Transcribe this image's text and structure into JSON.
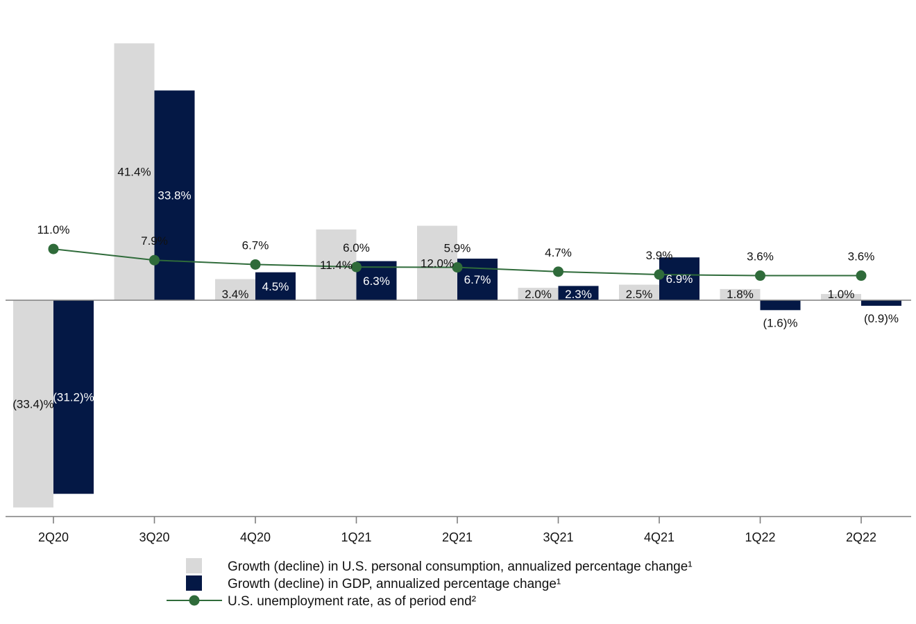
{
  "chart_data": {
    "type": "bar",
    "categories": [
      "2Q20",
      "3Q20",
      "4Q20",
      "1Q21",
      "2Q21",
      "3Q21",
      "4Q21",
      "1Q22",
      "2Q22"
    ],
    "series": [
      {
        "name": "Growth (decline) in U.S. personal consumption, annualized percentage change¹",
        "kind": "bar",
        "color": "#d9d9d9",
        "values": [
          -33.4,
          41.4,
          3.4,
          11.4,
          12.0,
          2.0,
          2.5,
          1.8,
          1.0
        ],
        "labels": [
          "(33.4)%",
          "41.4%",
          "3.4%",
          "11.4%",
          "12.0%",
          "2.0%",
          "2.5%",
          "1.8%",
          "1.0%"
        ]
      },
      {
        "name": "Growth (decline) in GDP, annualized percentage change¹",
        "kind": "bar",
        "color": "#041845",
        "values": [
          -31.2,
          33.8,
          4.5,
          6.3,
          6.7,
          2.3,
          6.9,
          -1.6,
          -0.9
        ],
        "labels": [
          "(31.2)%",
          "33.8%",
          "4.5%",
          "6.3%",
          "6.7%",
          "2.3%",
          "6.9%",
          "(1.6)%",
          "(0.9)%"
        ]
      },
      {
        "name": "U.S. unemployment rate, as of period end²",
        "kind": "line",
        "color": "#2f6b3a",
        "values": [
          11.0,
          7.9,
          6.7,
          6.0,
          5.9,
          4.7,
          3.9,
          3.6,
          3.6
        ],
        "labels": [
          "11.0%",
          "7.9%",
          "6.7%",
          "6.0%",
          "5.9%",
          "4.7%",
          "3.9%",
          "3.6%",
          "3.6%"
        ]
      }
    ],
    "ylim": [
      -34.5,
      41.5
    ],
    "grid": false,
    "legend_position": "bottom"
  }
}
